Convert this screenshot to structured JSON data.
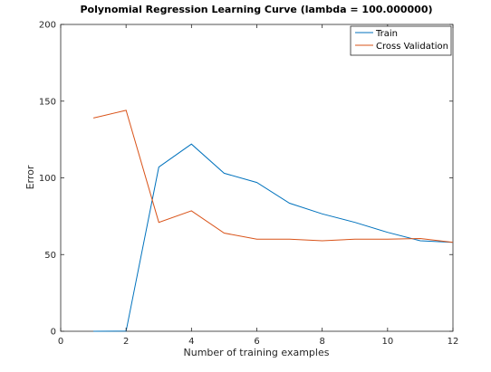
{
  "chart_data": {
    "type": "line",
    "title": "Polynomial Regression Learning Curve (lambda = 100.000000)",
    "xlabel": "Number of training examples",
    "ylabel": "Error",
    "xlim": [
      0,
      12
    ],
    "ylim": [
      0,
      200
    ],
    "xticks": [
      0,
      2,
      4,
      6,
      8,
      10,
      12
    ],
    "yticks": [
      0,
      50,
      100,
      150,
      200
    ],
    "grid": false,
    "legend_position": "top-right",
    "series": [
      {
        "name": "Train",
        "color": "#0072BD",
        "x": [
          1,
          2,
          3,
          4,
          5,
          6,
          7,
          8,
          9,
          10,
          11,
          12
        ],
        "y": [
          0,
          0.1,
          107,
          122,
          103,
          97,
          83.5,
          76.5,
          71,
          64.5,
          59,
          58
        ]
      },
      {
        "name": "Cross Validation",
        "color": "#D95319",
        "x": [
          1,
          2,
          3,
          4,
          5,
          6,
          7,
          8,
          9,
          10,
          11,
          12
        ],
        "y": [
          139,
          144,
          71,
          78.5,
          64,
          60,
          60,
          59,
          60,
          60,
          60.5,
          58
        ]
      }
    ]
  }
}
